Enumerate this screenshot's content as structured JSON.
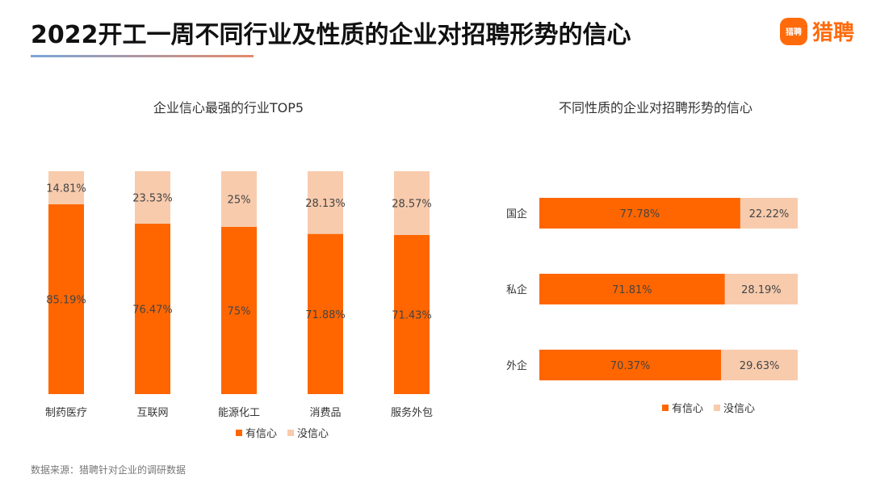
{
  "header": {
    "title": "2022开工一周不同行业及性质的企业对招聘形势的信心",
    "logo_mark": "猎聘",
    "logo_text": "猎聘"
  },
  "colors": {
    "confident": "#ff6600",
    "not_confident": "#f8cbad",
    "accent": "#ff6b0b"
  },
  "chart_data": [
    {
      "type": "bar",
      "stacked": true,
      "orientation": "vertical",
      "title": "企业信心最强的行业TOP5",
      "categories": [
        "制药医疗",
        "互联网",
        "能源化工",
        "消费品",
        "服务外包"
      ],
      "series": [
        {
          "name": "有信心",
          "values": [
            85.19,
            76.47,
            75,
            71.88,
            71.43
          ],
          "labels": [
            "85.19%",
            "76.47%",
            "75%",
            "71.88%",
            "71.43%"
          ]
        },
        {
          "name": "没信心",
          "values": [
            14.81,
            23.53,
            25,
            28.13,
            28.57
          ],
          "labels": [
            "14.81%",
            "23.53%",
            "25%",
            "28.13%",
            "28.57%"
          ]
        }
      ],
      "ylim": [
        0,
        100
      ],
      "legend": "bottom"
    },
    {
      "type": "bar",
      "stacked": true,
      "orientation": "horizontal",
      "title": "不同性质的企业对招聘形势的信心",
      "categories": [
        "国企",
        "私企",
        "外企"
      ],
      "series": [
        {
          "name": "有信心",
          "values": [
            77.78,
            71.81,
            70.37
          ],
          "labels": [
            "77.78%",
            "71.81%",
            "70.37%"
          ]
        },
        {
          "name": "没信心",
          "values": [
            22.22,
            28.19,
            29.63
          ],
          "labels": [
            "22.22%",
            "28.19%",
            "29.63%"
          ]
        }
      ],
      "xlim": [
        0,
        100
      ],
      "legend": "bottom"
    }
  ],
  "footer": {
    "source": "数据来源：猎聘针对企业的调研数据"
  }
}
